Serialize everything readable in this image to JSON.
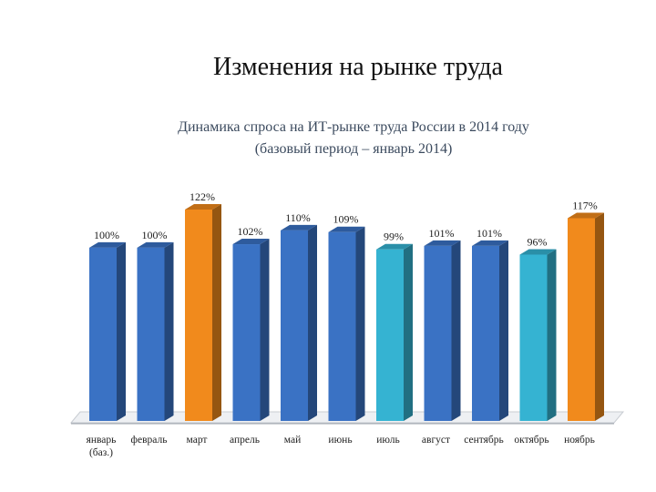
{
  "slide": {
    "title": "Изменения на рынке труда"
  },
  "chart_data": {
    "type": "bar",
    "title": "Динамика спроса на ИТ-рынке труда России в 2014 году",
    "subtitle": "(базовый период – январь 2014)",
    "categories": [
      "январь (баз.)",
      "февраль",
      "март",
      "апрель",
      "май",
      "июнь",
      "июль",
      "август",
      "сентябрь",
      "октябрь",
      "ноябрь"
    ],
    "category_lines": [
      [
        "январь",
        "(баз.)"
      ],
      [
        "февраль"
      ],
      [
        "март"
      ],
      [
        "апрель"
      ],
      [
        "май"
      ],
      [
        "июнь"
      ],
      [
        "июль"
      ],
      [
        "август"
      ],
      [
        "сентябрь"
      ],
      [
        "октябрь"
      ],
      [
        "ноябрь"
      ]
    ],
    "values": [
      100,
      100,
      122,
      102,
      110,
      109,
      99,
      101,
      101,
      96,
      117
    ],
    "labels": [
      "100%",
      "100%",
      "122%",
      "102%",
      "110%",
      "109%",
      "99%",
      "101%",
      "101%",
      "96%",
      "117%"
    ],
    "bar_colors": [
      "#3a72c4",
      "#3a72c4",
      "#f18a1c",
      "#3a72c4",
      "#3a72c4",
      "#3a72c4",
      "#35b3d2",
      "#3a72c4",
      "#3a72c4",
      "#35b3d2",
      "#f18a1c"
    ],
    "ylim": [
      0,
      122
    ],
    "grid": false,
    "legend": "none"
  }
}
